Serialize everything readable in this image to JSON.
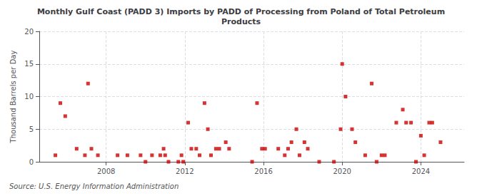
{
  "chart_data": {
    "type": "scatter",
    "title": "Monthly Gulf Coast (PADD 3) Imports by PADD of Processing from Poland of Total Petroleum\nProducts",
    "ylabel": "Thousand Barrels per Day",
    "annotation": "Source: U.S. Energy Information Administration",
    "color": "#cc0000",
    "marker": "square",
    "grid": true,
    "xlim": [
      2004.6,
      2026.2
    ],
    "xticks": [
      2008,
      2012,
      2016,
      2020,
      2024
    ],
    "ylim": [
      0,
      20
    ],
    "yticks": [
      0,
      5,
      10,
      15,
      20
    ],
    "x": [
      2005.42,
      2005.67,
      2005.92,
      2006.5,
      2006.92,
      2007.08,
      2007.25,
      2007.58,
      2008.58,
      2009.08,
      2009.75,
      2010.0,
      2010.33,
      2010.75,
      2010.92,
      2011.0,
      2011.17,
      2011.67,
      2011.83,
      2011.92,
      2012.17,
      2012.33,
      2012.58,
      2012.75,
      2013.0,
      2013.17,
      2013.33,
      2013.58,
      2013.75,
      2014.08,
      2014.25,
      2015.42,
      2015.67,
      2015.92,
      2016.08,
      2016.75,
      2017.08,
      2017.25,
      2017.42,
      2017.67,
      2017.83,
      2018.08,
      2018.25,
      2018.83,
      2019.58,
      2019.92,
      2020.0,
      2020.17,
      2020.5,
      2020.67,
      2021.17,
      2021.5,
      2021.75,
      2022.0,
      2022.17,
      2022.75,
      2023.08,
      2023.25,
      2023.5,
      2023.75,
      2024.0,
      2024.17,
      2024.42,
      2024.58,
      2025.0
    ],
    "values": [
      1,
      9,
      7,
      2,
      1,
      12,
      2,
      1,
      1,
      1,
      1,
      0,
      1,
      1,
      2,
      1,
      0,
      0,
      1,
      0,
      6,
      2,
      2,
      1,
      9,
      5,
      1,
      2,
      2,
      3,
      2,
      0,
      9,
      2,
      2,
      2,
      1,
      2,
      3,
      5,
      1,
      3,
      2,
      0,
      0,
      5,
      15,
      10,
      5,
      3,
      1,
      12,
      0,
      1,
      1,
      6,
      8,
      6,
      6,
      0,
      4,
      1,
      6,
      6,
      3
    ]
  }
}
